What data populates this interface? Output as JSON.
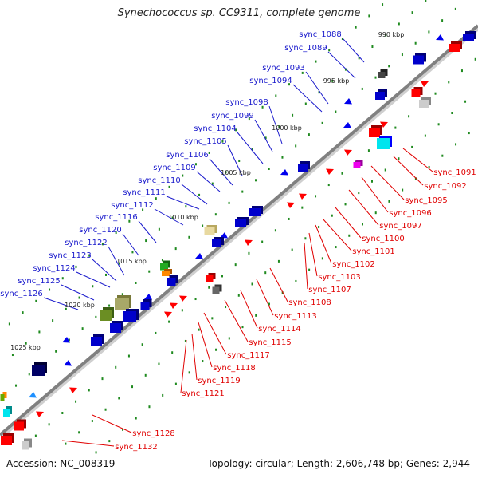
{
  "title": "Synechococcus sp. CC9311, complete genome",
  "footer": {
    "accession": "Accession: NC_008319",
    "summary": "Topology: circular; Length: 2,606,748 bp; Genes: 2,944"
  },
  "colors": {
    "backbone": "#808080",
    "tick": "#1f8a1f",
    "forward_label": "#1a1acc",
    "reverse_label": "#e00000"
  },
  "ticks": [
    "990 kbp",
    "995 kbp",
    "1000 kbp",
    "1005 kbp",
    "1010 kbp",
    "1015 kbp",
    "1020 kbp",
    "1025 kbp"
  ],
  "forward_labels": [
    "sync_1088",
    "sync_1089",
    "sync_1093",
    "sync_1094",
    "sync_1098",
    "sync_1099",
    "sync_1104",
    "sync_1105",
    "sync_1106",
    "sync_1109",
    "sync_1110",
    "sync_1111",
    "sync_1112",
    "sync_1116",
    "sync_1120",
    "sync_1122",
    "sync_1123",
    "sync_1124",
    "sync_1125",
    "sync_1126"
  ],
  "reverse_labels": [
    "sync_1091",
    "sync_1092",
    "sync_1095",
    "sync_1096",
    "sync_1097",
    "sync_1100",
    "sync_1101",
    "sync_1102",
    "sync_1103",
    "sync_1107",
    "sync_1108",
    "sync_1113",
    "sync_1114",
    "sync_1115",
    "sync_1117",
    "sync_1118",
    "sync_1119",
    "sync_1121",
    "sync_1128",
    "sync_1132"
  ]
}
